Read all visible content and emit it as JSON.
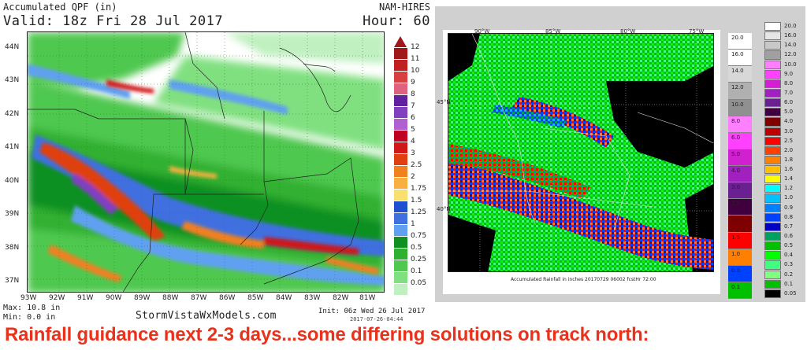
{
  "left_panel": {
    "header_title": "Accumulated QPF (in)",
    "header_valid": "Valid: 18z Fri 28 Jul 2017",
    "header_model": "NAM-HIRES",
    "header_hour": "Hour: 60",
    "lat_labels": [
      "44N",
      "43N",
      "42N",
      "41N",
      "40N",
      "39N",
      "38N",
      "37N"
    ],
    "lon_labels": [
      "93W",
      "92W",
      "91W",
      "90W",
      "89W",
      "88W",
      "87W",
      "86W",
      "85W",
      "84W",
      "83W",
      "82W",
      "81W"
    ],
    "scale_labels": [
      "12",
      "11",
      "10",
      "9",
      "8",
      "7",
      "6",
      "5",
      "4",
      "3",
      "2.5",
      "2",
      "1.75",
      "1.5",
      "1.25",
      "1",
      "0.75",
      "0.5",
      "0.25",
      "0.1",
      "0.05"
    ],
    "scale_colors": [
      "#a01818",
      "#c02020",
      "#d84040",
      "#e06080",
      "#6020a0",
      "#8040c0",
      "#b060d0",
      "#c00020",
      "#d01818",
      "#e04010",
      "#f08020",
      "#f8b040",
      "#f8e070",
      "#2050d0",
      "#4070e0",
      "#60a0f0",
      "#109020",
      "#30b030",
      "#50c850",
      "#80e080",
      "#c0f0c0"
    ],
    "max_text": "Max: 10.8 in",
    "min_text": "Min: 0.0 in",
    "brand": "StormVistaWxModels.com",
    "init_text": "Init: 06z Wed 26 Jul 2017",
    "created_text": "2017-07-26-04:44"
  },
  "right_panel": {
    "lon_labels": [
      "90°W",
      "85°W",
      "80°W",
      "75°W"
    ],
    "lat_labels": [
      "45°N",
      "40°N"
    ],
    "caption": "Accumulated Rainfall in inches 20170729 06002 fcstHr 72:00",
    "tall_legend_labels": [
      "20.0",
      "16.0",
      "14.0",
      "12.0",
      "10.0",
      "8.0",
      "6.0",
      "5.0",
      "4.0",
      "3.0",
      "2.5",
      "2.0",
      "1.5",
      "1.0",
      "0.5",
      "0.1"
    ],
    "key_legend_labels": [
      "20.0",
      "16.0",
      "14.0",
      "12.0",
      "10.0",
      "9.0",
      "8.0",
      "7.0",
      "6.0",
      "5.0",
      "4.0",
      "3.0",
      "2.5",
      "2.0",
      "1.8",
      "1.6",
      "1.4",
      "1.2",
      "1.0",
      "0.9",
      "0.8",
      "0.7",
      "0.6",
      "0.5",
      "0.4",
      "0.3",
      "0.2",
      "0.1",
      "0.05"
    ],
    "key_legend_colors": [
      "#ffffff",
      "#e6e6e6",
      "#c8c8c8",
      "#a0a0a0",
      "#ff80ff",
      "#ff40ff",
      "#d020d0",
      "#a020c0",
      "#6a2090",
      "#400040",
      "#800000",
      "#c00000",
      "#ff0000",
      "#ff4000",
      "#ff8000",
      "#ffc000",
      "#ffff00",
      "#00ffff",
      "#00c0ff",
      "#0080ff",
      "#0040ff",
      "#0000c0",
      "#00a060",
      "#00c000",
      "#00ff00",
      "#40ff80",
      "#80ff80",
      "#00c000",
      "#000000"
    ]
  },
  "caption": "Rainfall guidance next 2-3 days...some differing solutions on track north:"
}
